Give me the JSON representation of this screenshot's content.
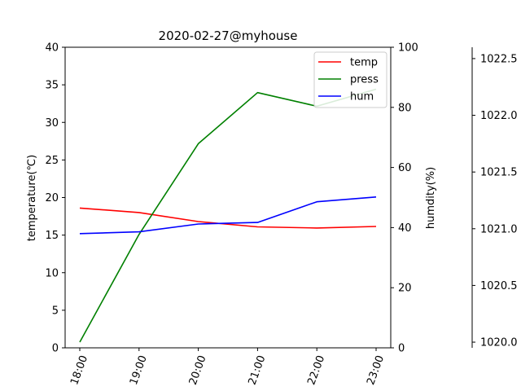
{
  "chart_data": {
    "type": "line",
    "title": "2020-02-27@myhouse",
    "categories": [
      "18:00",
      "19:00",
      "20:00",
      "21:00",
      "22:00",
      "23:00"
    ],
    "series": [
      {
        "name": "temp",
        "axis": "left",
        "color": "#ff0000",
        "values": [
          18.6,
          18.0,
          16.8,
          16.1,
          15.95,
          16.15
        ]
      },
      {
        "name": "press",
        "axis": "press",
        "color": "#008000",
        "values": [
          1020.0,
          1020.95,
          1021.75,
          1022.2,
          1022.08,
          1022.23
        ]
      },
      {
        "name": "hum",
        "axis": "right",
        "color": "#0000ff",
        "values": [
          38.0,
          38.6,
          41.2,
          41.7,
          48.6,
          50.2
        ]
      }
    ],
    "axes": {
      "left": {
        "label": "temperature(℃)",
        "ylim": [
          0,
          40
        ],
        "ticks": [
          "0",
          "5",
          "10",
          "15",
          "20",
          "25",
          "30",
          "35",
          "40"
        ]
      },
      "right": {
        "label": "humdity(%)",
        "ylim": [
          0,
          100
        ],
        "ticks": [
          "0",
          "20",
          "40",
          "60",
          "80",
          "100"
        ]
      },
      "press": {
        "label": "",
        "ylim": [
          1019.95,
          1022.6
        ],
        "ticks": [
          "1020.0",
          "1020.5",
          "1021.0",
          "1021.5",
          "1022.0",
          "1022.5"
        ]
      }
    },
    "legend": {
      "placement": "top-right",
      "entries": [
        "temp",
        "press",
        "hum"
      ]
    },
    "grid": false
  }
}
